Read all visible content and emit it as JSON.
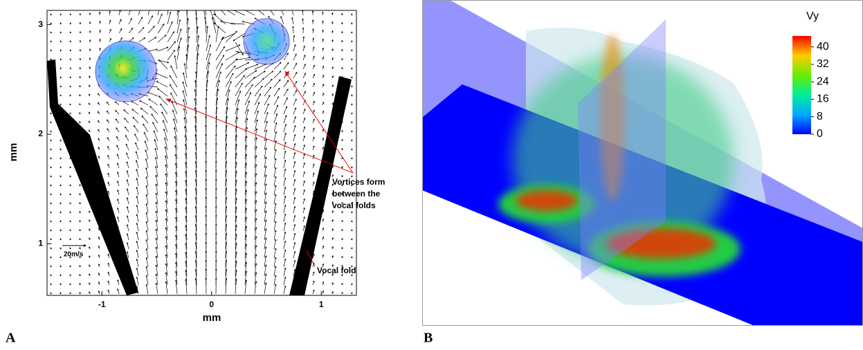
{
  "panel_a": {
    "label": "A",
    "x_label": "mm",
    "y_label": "mm",
    "xlim": [
      -1.5,
      1.32
    ],
    "ylim": [
      0.53,
      3.13
    ],
    "xticks": [
      -1,
      0,
      1
    ],
    "yticks": [
      1,
      2,
      3
    ],
    "scale_label": "20m/s",
    "annotation_lines": [
      "Vortices form",
      "between the",
      "vocal folds"
    ],
    "fold_label": "Vocal fold"
  },
  "panel_b": {
    "label": "B",
    "colorbar_title": "Vy",
    "clim": [
      0,
      45
    ],
    "colorbar_ticks": [
      0,
      8,
      16,
      24,
      32,
      40
    ]
  }
}
